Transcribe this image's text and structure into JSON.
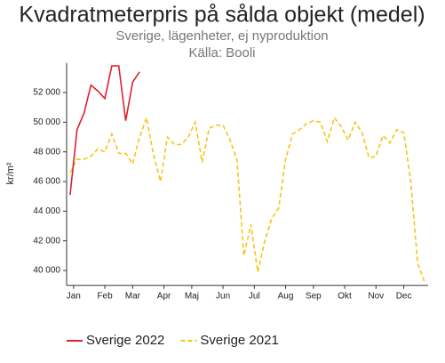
{
  "chart_data": {
    "type": "line",
    "title": "Kvadratmeterpris på sålda objekt (medel)",
    "subtitle": "Sverige, lägenheter, ej nyproduktion",
    "source": "Källa: Booli",
    "y_label": "kr/m²",
    "xlim": [
      0.5,
      52.5
    ],
    "xticks": [
      {
        "value": 1.5,
        "label": "Jan"
      },
      {
        "value": 6,
        "label": "Feb"
      },
      {
        "value": 10,
        "label": "Mar"
      },
      {
        "value": 14.5,
        "label": "Apr"
      },
      {
        "value": 18.5,
        "label": "Maj"
      },
      {
        "value": 23,
        "label": "Jun"
      },
      {
        "value": 27.5,
        "label": "Jul"
      },
      {
        "value": 32,
        "label": "Aug"
      },
      {
        "value": 36,
        "label": "Sep"
      },
      {
        "value": 40.5,
        "label": "Okt"
      },
      {
        "value": 45,
        "label": "Nov"
      },
      {
        "value": 49,
        "label": "Dec"
      }
    ],
    "ylim": [
      39000,
      54000
    ],
    "yticks": [
      {
        "value": 40000,
        "label": "40 000"
      },
      {
        "value": 42000,
        "label": "42 000"
      },
      {
        "value": 44000,
        "label": "44 000"
      },
      {
        "value": 46000,
        "label": "46 000"
      },
      {
        "value": 48000,
        "label": "48 000"
      },
      {
        "value": 50000,
        "label": "50 000"
      },
      {
        "value": 52000,
        "label": "52 000"
      }
    ],
    "grid": false,
    "legend": "bottom",
    "series": [
      {
        "name": "Sverige 2022",
        "color": "#e0202e",
        "dash": false,
        "x": [
          1,
          2,
          3,
          4,
          5,
          6,
          7,
          8,
          9,
          10,
          11
        ],
        "values": [
          45100,
          49500,
          50600,
          52500,
          52100,
          51600,
          53800,
          53800,
          50100,
          52700,
          53400
        ]
      },
      {
        "name": "Sverige 2021",
        "color": "#f5c518",
        "dash": true,
        "x": [
          1,
          2,
          3,
          4,
          5,
          6,
          7,
          8,
          9,
          10,
          11,
          12,
          13,
          14,
          15,
          16,
          17,
          18,
          19,
          20,
          21,
          22,
          23,
          24,
          25,
          26,
          27,
          28,
          29,
          30,
          31,
          32,
          33,
          34,
          35,
          36,
          37,
          38,
          39,
          40,
          41,
          42,
          43,
          44,
          45,
          46,
          47,
          48,
          49,
          50,
          51,
          52
        ],
        "values": [
          46600,
          47500,
          47500,
          47700,
          48200,
          48000,
          49200,
          47900,
          47900,
          47200,
          49000,
          50300,
          47800,
          46000,
          49000,
          48500,
          48500,
          49000,
          50000,
          47300,
          49600,
          49800,
          49800,
          48800,
          47500,
          41000,
          43100,
          39900,
          42000,
          43500,
          44200,
          47500,
          49200,
          49500,
          49900,
          50100,
          50000,
          48700,
          50300,
          49700,
          48800,
          50000,
          49300,
          47600,
          47700,
          49100,
          48600,
          49500,
          49300,
          46000,
          40500,
          39200
        ]
      }
    ]
  }
}
